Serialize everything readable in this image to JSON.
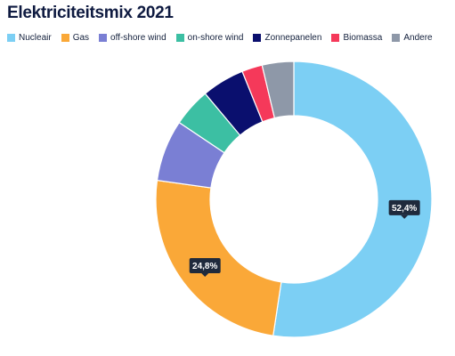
{
  "chart_data": {
    "type": "pie",
    "title": "Elektriciteitsmix 2021",
    "legend_position": "top-left",
    "donut": true,
    "categories": [
      "Nucleair",
      "Gas",
      "off-shore wind",
      "on-shore wind",
      "Zonnepanelen",
      "Biomassa",
      "Andere"
    ],
    "values": [
      52.4,
      24.8,
      7.2,
      4.5,
      5.0,
      2.4,
      3.7
    ],
    "colors": [
      "#7ccff4",
      "#faa838",
      "#7a7fd4",
      "#3cbfa3",
      "#0a0f6e",
      "#f5395a",
      "#8e98a8"
    ],
    "data_labels": [
      "52,4%",
      "24,8%",
      "",
      "",
      "",
      "",
      ""
    ]
  }
}
